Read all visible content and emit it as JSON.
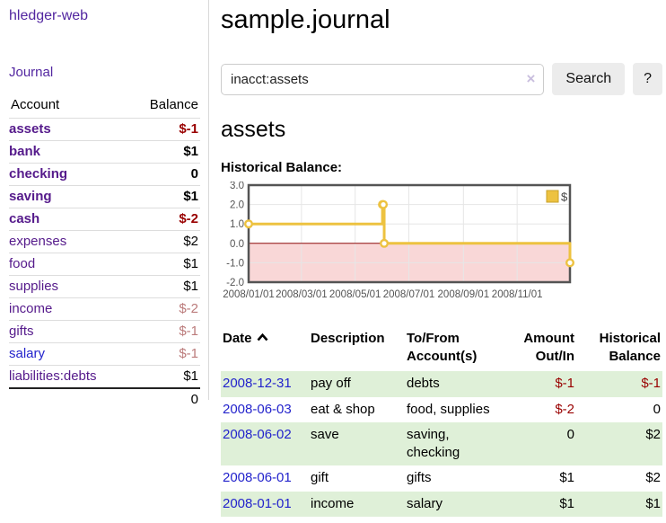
{
  "sidebar": {
    "brand": "hledger-web",
    "nav_journal": "Journal",
    "table": {
      "headers": [
        "Account",
        "Balance"
      ],
      "rows": [
        {
          "account": "assets",
          "balance": "$-1",
          "level": 1,
          "bold": true,
          "neg": "strong"
        },
        {
          "account": "bank",
          "balance": "$1",
          "level": 2,
          "bold": true,
          "neg": "none"
        },
        {
          "account": "checking",
          "balance": "0",
          "level": 3,
          "bold": true,
          "neg": "none"
        },
        {
          "account": "saving",
          "balance": "$1",
          "level": 3,
          "bold": true,
          "neg": "none"
        },
        {
          "account": "cash",
          "balance": "$-2",
          "level": 2,
          "bold": true,
          "neg": "strong"
        },
        {
          "account": "expenses",
          "balance": "$2",
          "level": 1,
          "bold": false,
          "neg": "none"
        },
        {
          "account": "food",
          "balance": "$1",
          "level": 2,
          "bold": false,
          "neg": "none"
        },
        {
          "account": "supplies",
          "balance": "$1",
          "level": 2,
          "bold": false,
          "neg": "none"
        },
        {
          "account": "income",
          "balance": "$-2",
          "level": 1,
          "bold": false,
          "neg": "soft"
        },
        {
          "account": "gifts",
          "balance": "$-1",
          "level": 2,
          "bold": false,
          "neg": "soft"
        },
        {
          "account": "salary",
          "balance": "$-1",
          "level": 2,
          "bold": false,
          "neg": "soft",
          "link": "unvisited"
        },
        {
          "account": "liabilities:debts",
          "balance": "$1",
          "level": 1,
          "bold": false,
          "neg": "none"
        }
      ],
      "total": "0"
    }
  },
  "main": {
    "title": "sample.journal",
    "search": {
      "value": "inacct:assets",
      "clear_icon": "×",
      "button_label": "Search",
      "help_label": "?"
    },
    "account_heading": "assets",
    "chart_label": "Historical Balance:"
  },
  "chart_data": {
    "type": "line",
    "title": "Historical Balance",
    "step": true,
    "xlim": [
      "2008-01-01",
      "2008-12-31"
    ],
    "ylim": [
      -2,
      3
    ],
    "yticks": [
      {
        "value": 3,
        "label": "3.0"
      },
      {
        "value": 2,
        "label": "2.0"
      },
      {
        "value": 1,
        "label": "1.0"
      },
      {
        "value": 0,
        "label": "0.0"
      },
      {
        "value": -1,
        "label": "-1.0"
      },
      {
        "value": -2,
        "label": "-2.0"
      }
    ],
    "xticks": [
      {
        "date": "2008-01-01",
        "label": "2008/01/01"
      },
      {
        "date": "2008-03-01",
        "label": "2008/03/01"
      },
      {
        "date": "2008-05-01",
        "label": "2008/05/01"
      },
      {
        "date": "2008-07-01",
        "label": "2008/07/01"
      },
      {
        "date": "2008-09-01",
        "label": "2008/09/01"
      },
      {
        "date": "2008-11-01",
        "label": "2008/11/01"
      }
    ],
    "series": [
      {
        "name": "$",
        "color": "#EDC240",
        "points": [
          [
            "2008-01-01",
            1
          ],
          [
            "2008-06-01",
            2
          ],
          [
            "2008-06-02",
            2
          ],
          [
            "2008-06-03",
            0
          ],
          [
            "2008-12-31",
            -1
          ]
        ]
      }
    ],
    "legend": {
      "position": "top-right",
      "label": "$"
    },
    "grid": true,
    "negative_region_fill": "#f9d7d7",
    "zero_line_color": "#8e0c0c",
    "border_color": "#545454",
    "gridline_color": "#e6e6e6",
    "tick_label_color": "#545454"
  },
  "register": {
    "headers": {
      "date": "Date",
      "description": "Description",
      "accounts": "To/From Account(s)",
      "amount": "Amount Out/In",
      "balance": "Historical Balance"
    },
    "rows": [
      {
        "date": "2008-12-31",
        "description": "pay off",
        "accounts": "debts",
        "amount": "$-1",
        "balance": "$-1",
        "amount_neg": true,
        "balance_neg": true
      },
      {
        "date": "2008-06-03",
        "description": "eat & shop",
        "accounts": "food, supplies",
        "amount": "$-2",
        "balance": "0",
        "amount_neg": true,
        "balance_neg": false
      },
      {
        "date": "2008-06-02",
        "description": "save",
        "accounts": "saving, checking",
        "amount": "0",
        "balance": "$2",
        "amount_neg": false,
        "balance_neg": false
      },
      {
        "date": "2008-06-01",
        "description": "gift",
        "accounts": "gifts",
        "amount": "$1",
        "balance": "$2",
        "amount_neg": false,
        "balance_neg": false
      },
      {
        "date": "2008-01-01",
        "description": "income",
        "accounts": "salary",
        "amount": "$1",
        "balance": "$1",
        "amount_neg": false,
        "balance_neg": false
      }
    ]
  },
  "colors": {
    "link_purple": "#551a8b",
    "link_blue": "#2323cc",
    "negative_strong": "#990000",
    "negative_soft": "#bb7b7b",
    "row_green": "#dff0d8",
    "chart_line": "#EDC240",
    "button_bg": "#ececec"
  }
}
